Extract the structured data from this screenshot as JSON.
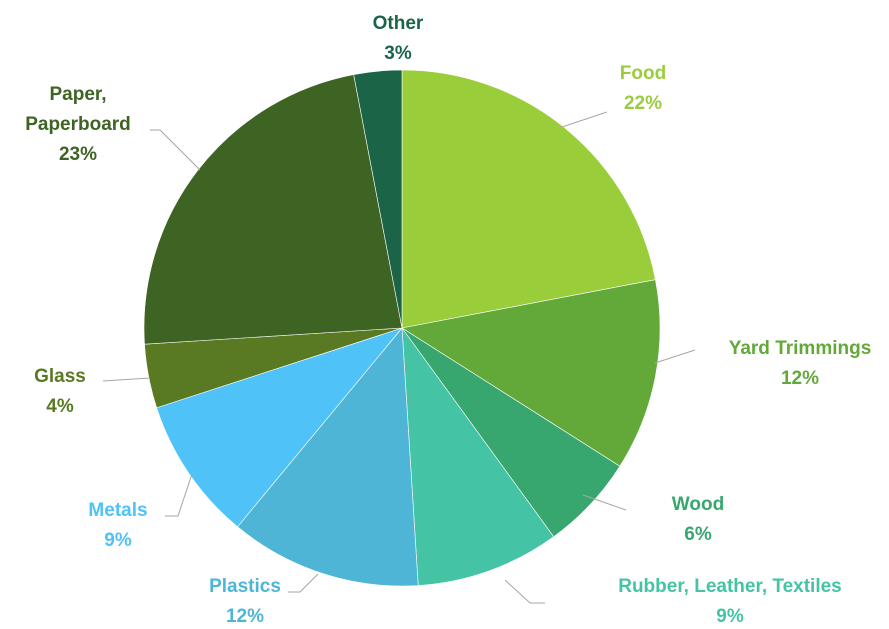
{
  "chart_data": {
    "type": "pie",
    "title": "",
    "slices": [
      {
        "name": "Food",
        "value": 22,
        "label": "22%",
        "color": "#9ACD3A",
        "text_color": "#9ACD3A"
      },
      {
        "name": "Yard Trimmings",
        "value": 12,
        "label": "12%",
        "color": "#63A93A",
        "text_color": "#63A93A"
      },
      {
        "name": "Wood",
        "value": 6,
        "label": "6%",
        "color": "#37A76F",
        "text_color": "#37A76F"
      },
      {
        "name": "Rubber, Leather, Textiles",
        "value": 9,
        "label": "9%",
        "color": "#44C4A5",
        "text_color": "#44C4A5"
      },
      {
        "name": "Plastics",
        "value": 12,
        "label": "12%",
        "color": "#4EB5D6",
        "text_color": "#4EB5D6"
      },
      {
        "name": "Metals",
        "value": 9,
        "label": "9%",
        "color": "#4FC3F7",
        "text_color": "#4FC3F7"
      },
      {
        "name": "Glass",
        "value": 4,
        "label": "4%",
        "color": "#5A7923",
        "text_color": "#5A7923"
      },
      {
        "name": "Paper, Paperboard",
        "value": 23,
        "label": "23%",
        "color": "#3D6423",
        "text_color": "#3D6423"
      },
      {
        "name": "Other",
        "value": 3,
        "label": "3%",
        "color": "#1C6448",
        "text_color": "#1C6448"
      }
    ],
    "legend": "none",
    "data_labels": "outside with leader lines"
  }
}
